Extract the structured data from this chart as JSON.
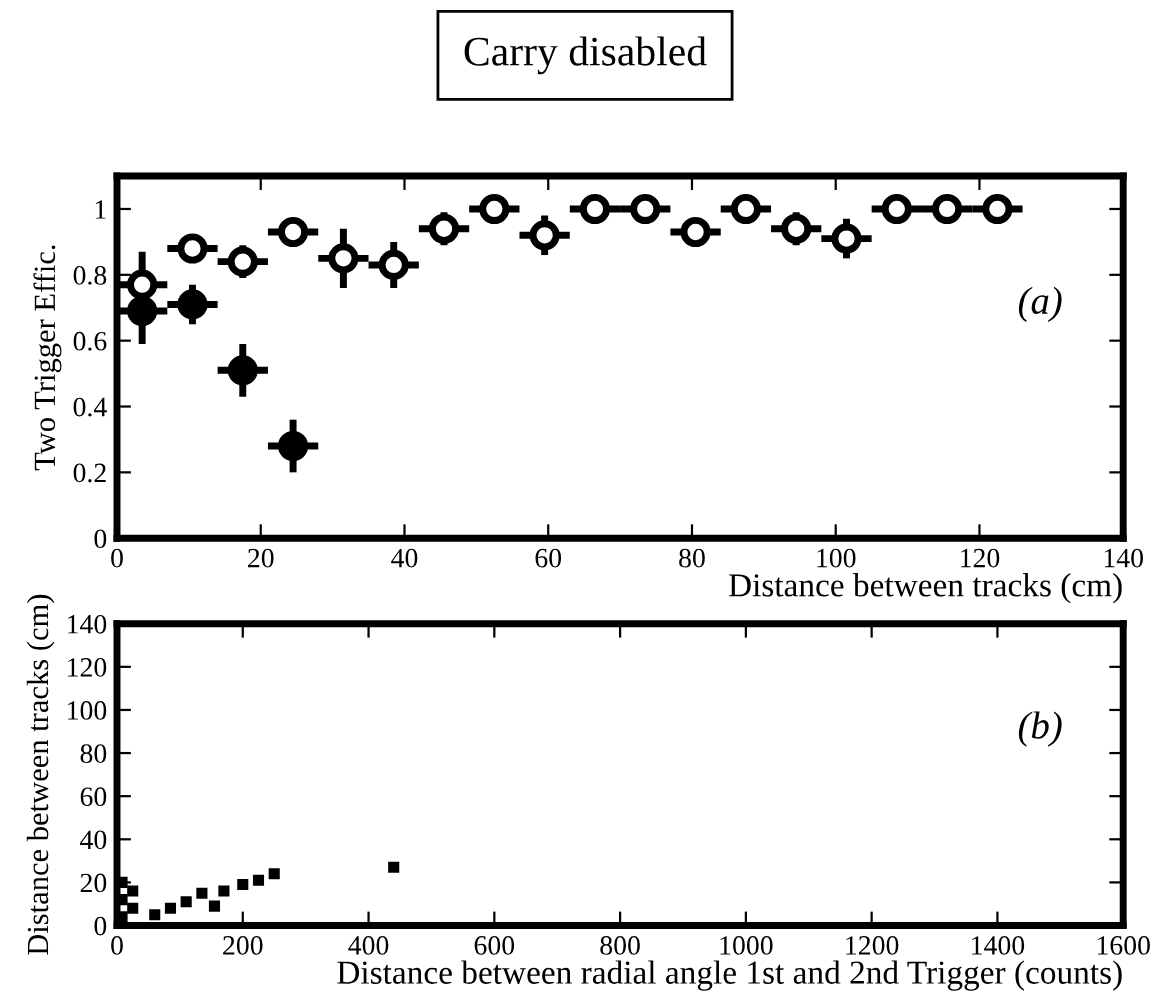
{
  "chart_data": [
    {
      "type": "scatter",
      "title": "Carry disabled",
      "ylabel": "Two Trigger Effic.",
      "xlabel": "Distance between tracks (cm)",
      "annotations": [
        "(a)"
      ],
      "xlim": [
        0,
        140
      ],
      "ylim": [
        0,
        1.1
      ],
      "xticks": [
        0,
        20,
        40,
        60,
        80,
        100,
        120,
        140
      ],
      "yticks": [
        0,
        0.2,
        0.4,
        0.6,
        0.8,
        1
      ],
      "marker": "circle",
      "grid": false,
      "legend": false,
      "series": [
        {
          "color": "#ffffff",
          "x": [
            3.5,
            10.5,
            17.5,
            24.5,
            31.5,
            38.5,
            45.5,
            52.5,
            59.5,
            66.5,
            73.5,
            80.5,
            87.5,
            94.5,
            101.5,
            108.5,
            115.5,
            122.5
          ],
          "values": [
            0.77,
            0.88,
            0.84,
            0.93,
            0.85,
            0.83,
            0.94,
            1.0,
            0.92,
            1.0,
            1.0,
            0.93,
            1.0,
            0.94,
            0.91,
            1.0,
            1.0,
            1.0
          ],
          "errors": [
            0.1,
            0.03,
            0.05,
            0.03,
            0.09,
            0.07,
            0.05,
            0.02,
            0.06,
            0.02,
            0.02,
            0.04,
            0.02,
            0.05,
            0.06,
            0.02,
            0.02,
            0.02
          ],
          "xerrors": [
            3.5,
            3.5,
            3.5,
            3.5,
            3.5,
            3.5,
            3.5,
            3.5,
            3.5,
            3.5,
            3.5,
            3.5,
            3.5,
            3.5,
            3.5,
            3.5,
            3.5,
            3.5
          ]
        },
        {
          "color": "#000000",
          "x": [
            3.5,
            10.5,
            17.5,
            24.5
          ],
          "values": [
            0.69,
            0.71,
            0.51,
            0.28
          ],
          "errors": [
            0.1,
            0.06,
            0.08,
            0.08
          ],
          "xerrors": [
            3.5,
            3.5,
            3.5,
            3.5
          ]
        }
      ]
    },
    {
      "type": "scatter",
      "ylabel": "Distance between tracks (cm)",
      "xlabel": "Distance between radial angle 1st and 2nd Trigger (counts)",
      "annotations": [
        "(b)"
      ],
      "xlim": [
        0,
        1600
      ],
      "ylim": [
        0,
        140
      ],
      "xticks": [
        0,
        200,
        400,
        600,
        800,
        1000,
        1200,
        1400,
        1600
      ],
      "yticks": [
        0,
        20,
        40,
        60,
        80,
        100,
        120,
        140
      ],
      "marker": "square",
      "grid": false,
      "legend": false,
      "series": [
        {
          "color": "#000000",
          "x": [
            8,
            8,
            8,
            25,
            25,
            60,
            85,
            110,
            135,
            155,
            170,
            200,
            225,
            250,
            440
          ],
          "values": [
            4,
            12,
            20,
            8,
            16,
            5,
            8,
            11,
            15,
            9,
            16,
            19,
            21,
            24,
            27
          ]
        }
      ]
    }
  ]
}
